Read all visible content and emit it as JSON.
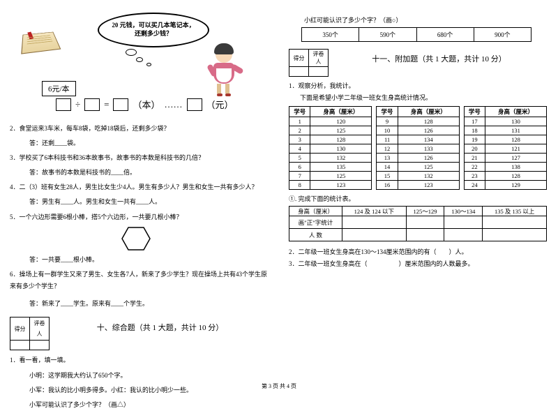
{
  "bubble_text": "20 元钱，可以买几本笔记本，还剩多少钱？",
  "price_label": "6元/本",
  "equation": {
    "op1": "÷",
    "op2": "=",
    "unit1": "（本）",
    "dots": "……",
    "unit2": "（元）"
  },
  "left_questions": {
    "q2": "2．食堂运来3车米，每车8袋，吃掉18袋后，还剩多少袋？",
    "a2": "答：还剩____袋。",
    "q3": "3．学校买了6本科技书和36本故事书，故事书的本数是科技书的几倍？",
    "a3": "答：故事书的本数是科技书的____倍。",
    "q4": "4．二（3）班有女生28人，男生比女生少4人。男生有多少人？男生和女生一共有多少人？",
    "a4": "答：男生有____人。男生和女生一共有____人。",
    "q5": "5．一个六边形需要6根小棒，搭5个六边形，一共要几根小棒？",
    "a5": "答：一共要____根小棒。",
    "q6": "6．操场上有一群学生又来了男生、女生各7人，新来了多少学生？现在操场上共有43个学生原来有多少个学生？",
    "a6": "答：新来了____学生。原来有____个学生。"
  },
  "score_labels": {
    "score": "得分",
    "grader": "评卷人"
  },
  "section10": {
    "title": "十、综合题（共 1 大题，共计 10 分）"
  },
  "comprehensive": {
    "q1": "1．看一看，填一填。",
    "l1": "小明：这学期我大约认了650个字。",
    "l2": "小军：我认的比小明多得多。小红：我认的比小明少一些。",
    "l3": "小军可能认识了多少个字？（画△）",
    "r_prompt": "小红可能认识了多少个字？（画○）",
    "options": [
      "350个",
      "590个",
      "680个",
      "900个"
    ]
  },
  "section11": {
    "title": "十一、附加题（共 1 大题，共计 10 分）"
  },
  "height_q": {
    "q1": "1．观察分析，我统计。",
    "desc": "下面是希望小学二年级一班女生身高统计情况。",
    "header": [
      "学号",
      "身高（厘米）"
    ],
    "table_a": [
      [
        "1",
        "120"
      ],
      [
        "2",
        "125"
      ],
      [
        "3",
        "128"
      ],
      [
        "4",
        "130"
      ],
      [
        "5",
        "132"
      ],
      [
        "6",
        "135"
      ],
      [
        "7",
        "125"
      ],
      [
        "8",
        "123"
      ]
    ],
    "table_b": [
      [
        "9",
        "128"
      ],
      [
        "10",
        "126"
      ],
      [
        "11",
        "134"
      ],
      [
        "12",
        "133"
      ],
      [
        "13",
        "126"
      ],
      [
        "14",
        "125"
      ],
      [
        "15",
        "132"
      ],
      [
        "16",
        "123"
      ]
    ],
    "table_c": [
      [
        "17",
        "130"
      ],
      [
        "18",
        "131"
      ],
      [
        "19",
        "128"
      ],
      [
        "20",
        "121"
      ],
      [
        "21",
        "127"
      ],
      [
        "22",
        "138"
      ],
      [
        "23",
        "128"
      ],
      [
        "24",
        "129"
      ]
    ]
  },
  "fill": {
    "prompt": "①. 完成下面的统计表。",
    "headers": [
      "身高（厘米）",
      "124 及 124 以下",
      "125～129",
      "130～134",
      "135 及 135 以上"
    ],
    "row1": "画\"正\"字统计",
    "row2": "人  数"
  },
  "sub_q": {
    "q2": "2．二年级一班女生身高在130～134厘米范围内的有（　　）人。",
    "q3": "3．二年级一班女生身高在（　　　　　）厘米范围内的人数最多。"
  },
  "footer": "第 3 页 共 4 页"
}
